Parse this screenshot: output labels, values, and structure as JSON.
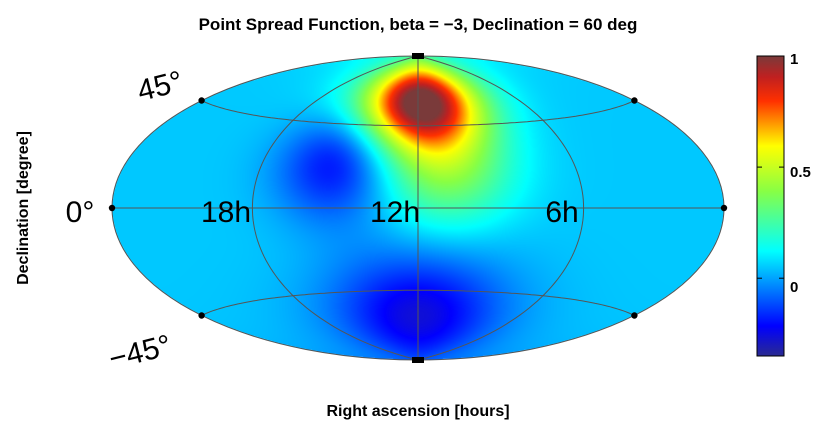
{
  "chart_data": {
    "type": "heatmap",
    "projection": "aitoff-hammer",
    "title": "Point Spread Function, beta = −3, Declination = 60 deg",
    "xlabel": "Right ascension [hours]",
    "ylabel": "Declination [degree]",
    "ra_tick_labels": [
      "18h",
      "12h",
      "6h"
    ],
    "ra_ticks_hours": [
      18,
      12,
      6
    ],
    "dec_tick_labels": [
      "45°",
      "0°",
      "−45°"
    ],
    "dec_ticks_deg": [
      45,
      0,
      -45
    ],
    "colorbar": {
      "ticks": [
        1,
        0.5,
        0
      ],
      "tick_labels": [
        "1",
        "0.5",
        "0"
      ],
      "range": [
        -0.35,
        1.0
      ],
      "colormap": "jet"
    },
    "peak": {
      "ra_hours": 12,
      "dec_deg": 60,
      "value": 1.0
    },
    "features": [
      {
        "ra_hours": 12,
        "dec_deg": 60,
        "value": 1.0
      },
      {
        "ra_hours": 11,
        "dec_deg": 25,
        "value": 0.45
      },
      {
        "ra_hours": 15,
        "dec_deg": 25,
        "value": -0.25
      },
      {
        "ra_hours": 12,
        "dec_deg": -60,
        "value": -0.3
      },
      {
        "ra_hours": 17,
        "dec_deg": -40,
        "value": 0.05
      }
    ],
    "grid": true,
    "colors": {
      "background": "#ffffff",
      "grid_line": "#555555",
      "text": "#000000"
    }
  }
}
